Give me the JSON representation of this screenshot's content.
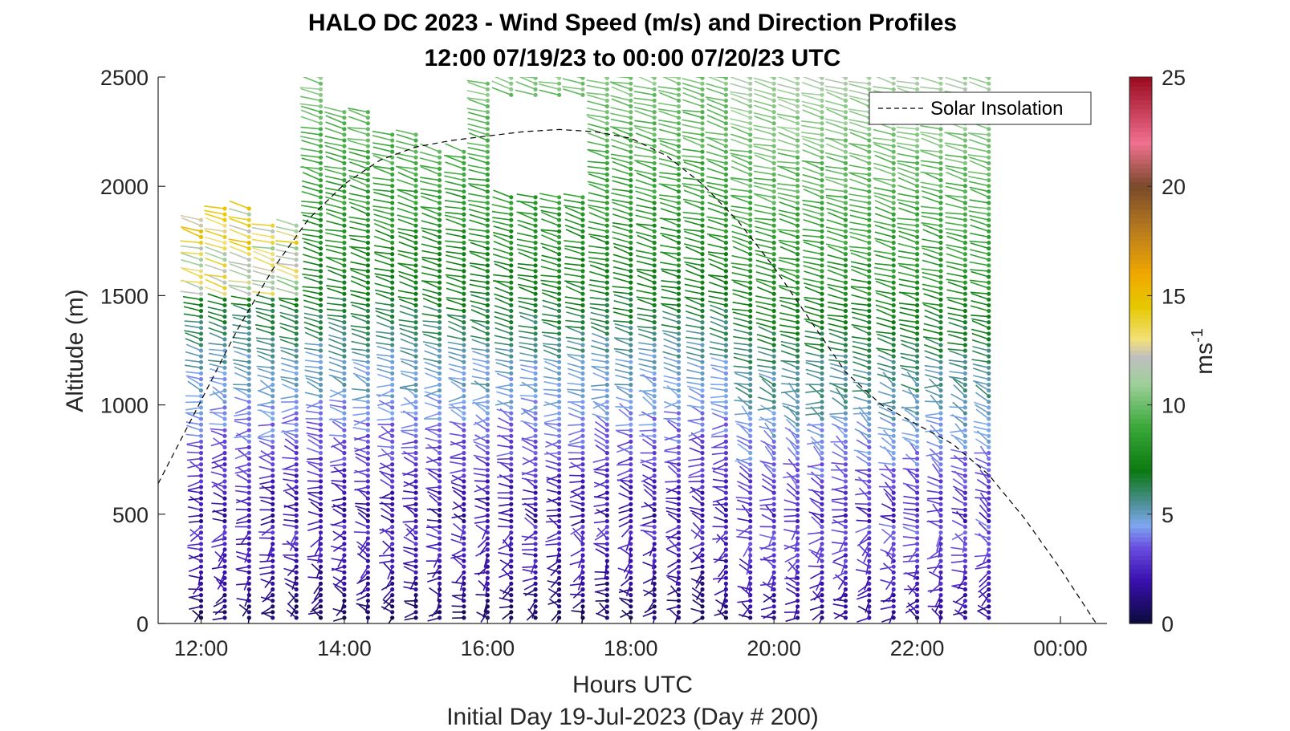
{
  "chart_data": {
    "type": "scatter",
    "title": "HALO DC 2023 - Wind Speed (m/s) and Direction Profiles",
    "subtitle": "12:00 07/19/23 to 00:00 07/20/23  UTC",
    "xlabel": "Hours UTC",
    "xlabel2": "Initial Day 19-Jul-2023 (Day # 200)",
    "ylabel": "Altitude (m)",
    "colorbar_label": "ms",
    "colorbar_label_sup": "-1",
    "xlim": [
      11.4,
      24.65
    ],
    "ylim": [
      0,
      2500
    ],
    "x_ticks": [
      {
        "value": 12,
        "label": "12:00"
      },
      {
        "value": 14,
        "label": "14:00"
      },
      {
        "value": 16,
        "label": "16:00"
      },
      {
        "value": 18,
        "label": "18:00"
      },
      {
        "value": 20,
        "label": "20:00"
      },
      {
        "value": 22,
        "label": "22:00"
      },
      {
        "value": 24,
        "label": "00:00"
      }
    ],
    "y_ticks": [
      {
        "value": 0,
        "label": "0"
      },
      {
        "value": 500,
        "label": "500"
      },
      {
        "value": 1000,
        "label": "1000"
      },
      {
        "value": 1500,
        "label": "1500"
      },
      {
        "value": 2000,
        "label": "2000"
      },
      {
        "value": 2500,
        "label": "2500"
      }
    ],
    "colorbar": {
      "range": [
        0,
        25
      ],
      "ticks": [
        {
          "value": 0,
          "label": "0"
        },
        {
          "value": 5,
          "label": "5"
        },
        {
          "value": 10,
          "label": "10"
        },
        {
          "value": 15,
          "label": "15"
        },
        {
          "value": 20,
          "label": "20"
        },
        {
          "value": 25,
          "label": "25"
        }
      ],
      "stops": [
        {
          "v": 0,
          "c": "#0b0a3a"
        },
        {
          "v": 2,
          "c": "#3a10b0"
        },
        {
          "v": 3.5,
          "c": "#6a4ee0"
        },
        {
          "v": 4.5,
          "c": "#7ea8f0"
        },
        {
          "v": 5.5,
          "c": "#4f9098"
        },
        {
          "v": 7,
          "c": "#0a7a10"
        },
        {
          "v": 9,
          "c": "#3aa83a"
        },
        {
          "v": 11,
          "c": "#9fd09a"
        },
        {
          "v": 12.2,
          "c": "#bfbfbf"
        },
        {
          "v": 13,
          "c": "#f2e07a"
        },
        {
          "v": 14.5,
          "c": "#e6c800"
        },
        {
          "v": 16,
          "c": "#f0a800"
        },
        {
          "v": 18,
          "c": "#b87c1e"
        },
        {
          "v": 20,
          "c": "#7a4a2a"
        },
        {
          "v": 22,
          "c": "#f07090"
        },
        {
          "v": 25,
          "c": "#9a0a1e"
        }
      ]
    },
    "series": [
      {
        "name": "Solar Insolation",
        "style": "dashed",
        "color": "#000000",
        "x": [
          11.4,
          12.0,
          12.5,
          13.0,
          13.5,
          14.0,
          14.5,
          15.0,
          15.5,
          16.0,
          16.5,
          17.0,
          17.5,
          18.0,
          18.5,
          19.0,
          19.5,
          20.0,
          20.5,
          21.0,
          21.5,
          22.0,
          22.5,
          23.0,
          23.5,
          24.0,
          24.5
        ],
        "y": [
          640,
          1020,
          1340,
          1620,
          1850,
          2010,
          2120,
          2180,
          2210,
          2230,
          2250,
          2260,
          2250,
          2220,
          2140,
          2010,
          1840,
          1630,
          1390,
          1150,
          1000,
          910,
          820,
          680,
          480,
          250,
          0
        ]
      }
    ],
    "wind_profiles": {
      "description": "wind speed (color) and direction (barb) at each profile time and range gate",
      "times_utc": [
        12.0,
        12.33,
        12.67,
        13.0,
        13.33,
        13.67,
        14.0,
        14.33,
        14.67,
        15.0,
        15.33,
        15.67,
        16.0,
        16.33,
        16.67,
        17.0,
        17.33,
        17.67,
        18.0,
        18.33,
        18.67,
        19.0,
        19.33,
        19.67,
        20.0,
        20.33,
        20.67,
        21.0,
        21.33,
        21.67,
        22.0,
        22.33,
        22.67,
        23.0
      ],
      "altitude_step_m": 26,
      "max_altitude_m": 2500
    },
    "grid": false,
    "legend": "top-right"
  }
}
